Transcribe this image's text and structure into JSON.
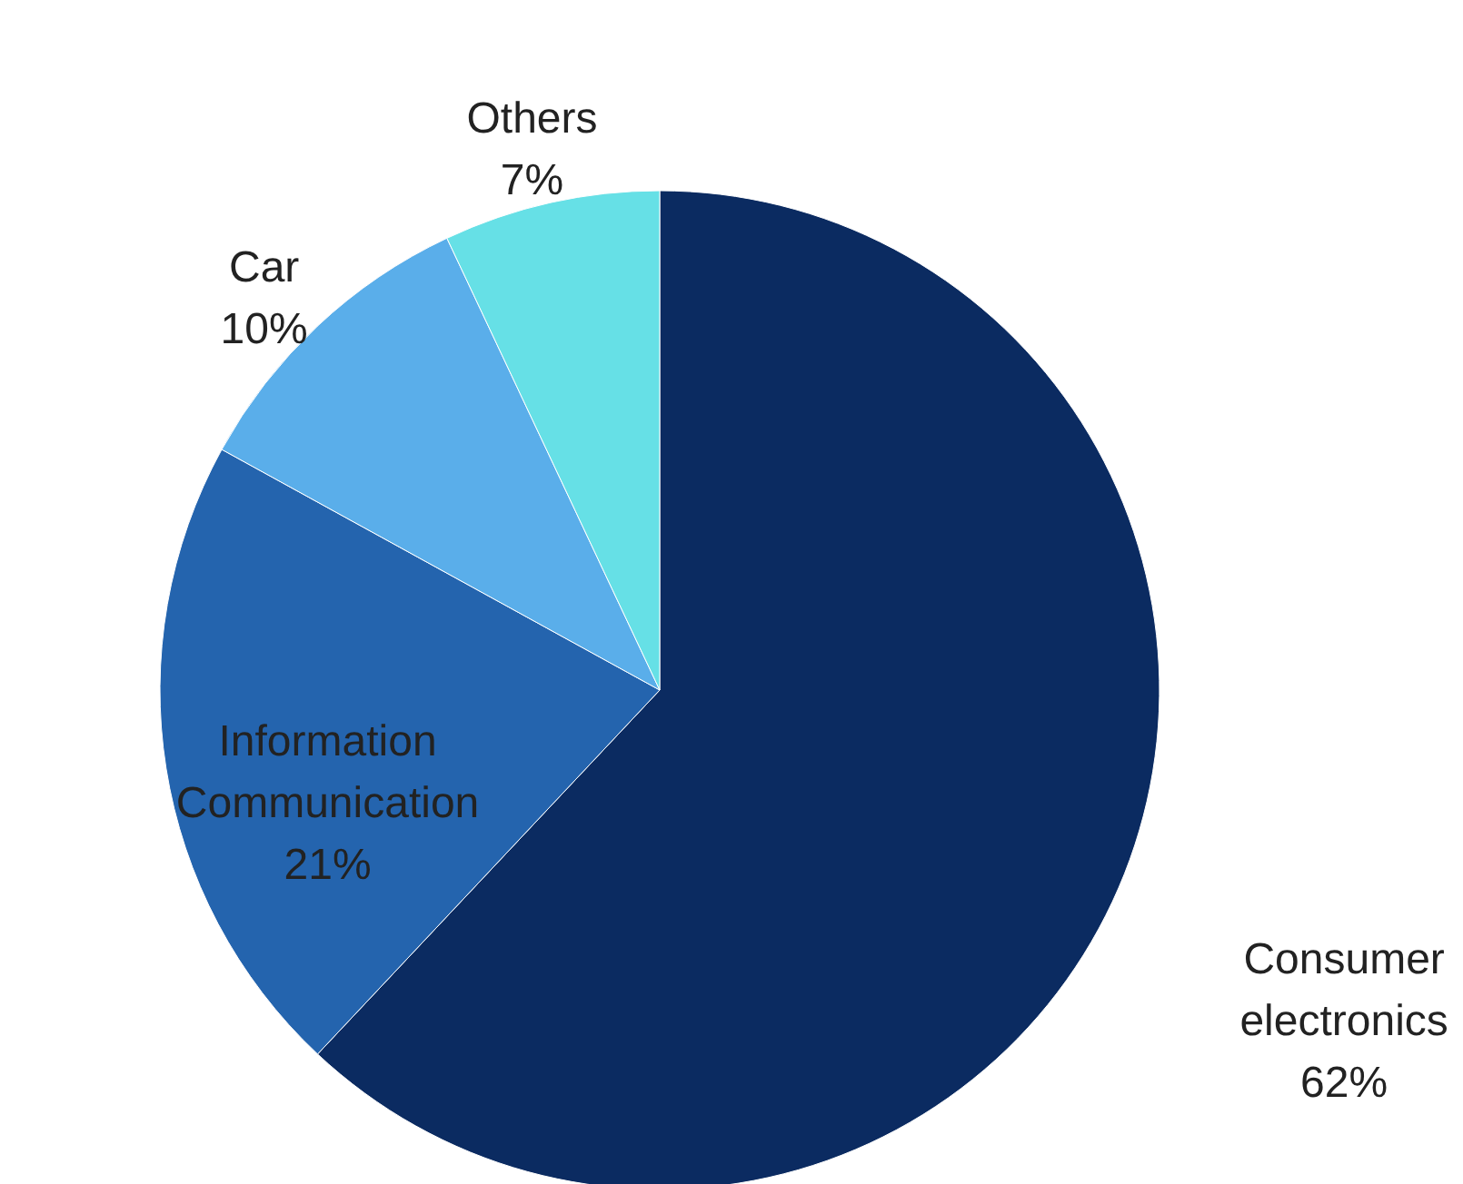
{
  "chart_data": {
    "type": "pie",
    "categories": [
      "Consumer electronics",
      "Information Communication",
      "Car",
      "Others"
    ],
    "values": [
      62,
      21,
      10,
      7
    ],
    "value_labels": [
      "62%",
      "21%",
      "10%",
      "7%"
    ],
    "colors": [
      "#0b2b61",
      "#2464ae",
      "#5aaeea",
      "#66e0e6"
    ]
  }
}
